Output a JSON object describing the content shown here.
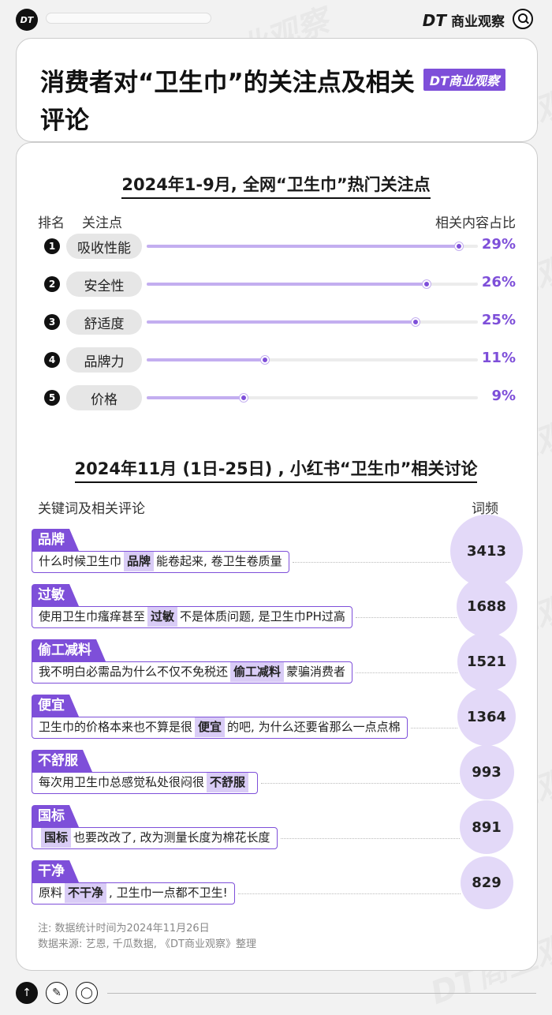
{
  "topbar": {
    "logo": "DT",
    "brand_dt": "DT",
    "brand_name": "商业观察"
  },
  "header": {
    "title": "消费者对“卫生巾”的关注点及相关评论",
    "badge": "DT商业观察"
  },
  "section1": {
    "title": "2024年1-9月, 全网“卫生巾”热门关注点",
    "col_rank": "排名",
    "col_focus": "关注点",
    "col_share": "相关内容占比"
  },
  "section2": {
    "title": "2024年11月 (1日-25日) , 小红书“卫生巾”相关讨论",
    "col_keyword": "关键词及相关评论",
    "col_freq": "词频"
  },
  "chart_data": [
    {
      "type": "bar",
      "title": "2024年1-9月, 全网“卫生巾”热门关注点",
      "categories": [
        "吸收性能",
        "安全性",
        "舒适度",
        "品牌力",
        "价格"
      ],
      "ranks": [
        "1",
        "2",
        "3",
        "4",
        "5"
      ],
      "values": [
        29,
        26,
        25,
        11,
        9
      ],
      "value_labels": [
        "29%",
        "26%",
        "25%",
        "11%",
        "9%"
      ],
      "unit": "%",
      "ylabel": "相关内容占比",
      "xlim": [
        0,
        30
      ]
    },
    {
      "type": "table",
      "title": "2024年11月 (1日-25日) , 小红书“卫生巾”相关讨论",
      "rows": [
        {
          "keyword": "品牌",
          "pre": "什么时候卫生巾",
          "post": "能卷起来, 卷卫生卷质量",
          "freq": 3413
        },
        {
          "keyword": "过敏",
          "pre": "使用卫生巾瘙痒甚至",
          "post": "不是体质问题, 是卫生巾PH过高",
          "freq": 1688
        },
        {
          "keyword": "偷工减料",
          "pre": "我不明白必需品为什么不仅不免税还",
          "post": "蒙骗消费者",
          "freq": 1521
        },
        {
          "keyword": "便宜",
          "pre": "卫生巾的价格本来也不算是很",
          "post": "的吧, 为什么还要省那么一点点棉",
          "freq": 1364
        },
        {
          "keyword": "不舒服",
          "pre": "每次用卫生巾总感觉私处很闷很",
          "post": "",
          "freq": 993
        },
        {
          "keyword": "国标",
          "pre": "",
          "post": "也要改改了, 改为测量长度为棉花长度",
          "freq": 891
        },
        {
          "keyword": "干净",
          "pre": "原料",
          "hl": "不干净",
          "post": ", 卫生巾一点都不卫生!",
          "freq": 829
        }
      ]
    }
  ],
  "notes": {
    "note": "注: 数据统计时间为2024年11月26日",
    "source": "数据来源: 艺恩, 千瓜数据, 《DT商业观察》整理"
  },
  "bottombar": {
    "up": "↑",
    "edit": "✎",
    "user": "◯"
  },
  "colors": {
    "accent": "#7e4fd9",
    "accent_light": "#d9ccf6",
    "bubble": "#e3d9f8"
  },
  "watermark": "DT商业观察"
}
